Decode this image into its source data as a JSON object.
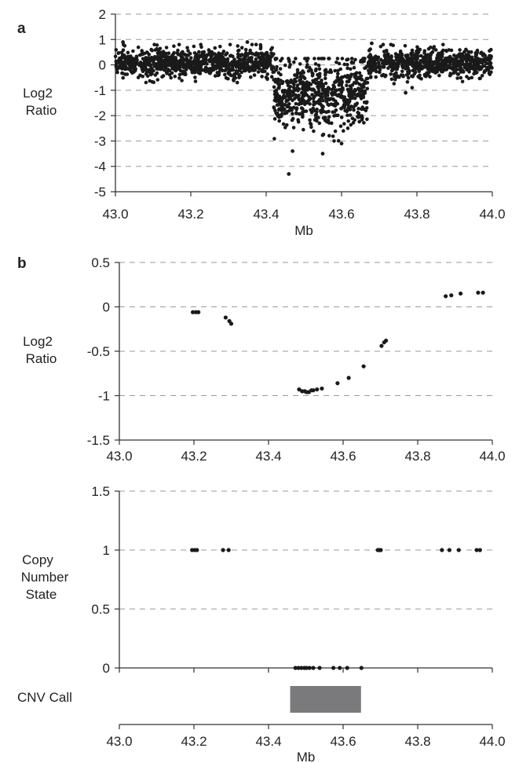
{
  "panel_labels": [
    "a",
    "b"
  ],
  "cnv_label": "CNV Call",
  "colors": {
    "points": "#1a1a1a",
    "grid": "#9a9a9a",
    "axis": "#333333",
    "cnv_bar": "#7a7a7c"
  },
  "chart_data": [
    {
      "id": "a",
      "type": "scatter",
      "xlabel": "Mb",
      "ylabel": "Log2\nRatio",
      "xlim": [
        43.0,
        44.0
      ],
      "ylim": [
        -5,
        2
      ],
      "xticks": [
        "43.0",
        "43.2",
        "43.4",
        "43.6",
        "43.8",
        "44.0"
      ],
      "yticks": [
        "2",
        "1",
        "0",
        "-1",
        "-2",
        "-3",
        "-4",
        "-5"
      ],
      "grid": "horizontal dashed",
      "description_of_points": "about 2000 probes; neutral region near 0 (sd ~0.25) from 43.00-43.42 and 43.67-44.00 Mb; deleted region 43.42-43.67 Mb centered around -1 (range roughly -4.3 to 0.3)",
      "segments": [
        {
          "x_start": 43.0,
          "x_end": 43.42,
          "center": 0.05,
          "spread": 0.28
        },
        {
          "x_start": 43.42,
          "x_end": 43.67,
          "center": -1.1,
          "spread": 0.7
        },
        {
          "x_start": 43.67,
          "x_end": 44.0,
          "center": 0.05,
          "spread": 0.28
        }
      ],
      "outliers": [
        {
          "x": 43.46,
          "y": -4.3
        },
        {
          "x": 43.47,
          "y": -3.4
        },
        {
          "x": 43.55,
          "y": -3.5
        },
        {
          "x": 43.6,
          "y": -3.1
        },
        {
          "x": 43.35,
          "y": 0.9
        },
        {
          "x": 43.02,
          "y": 0.9
        },
        {
          "x": 43.68,
          "y": 0.85
        },
        {
          "x": 43.77,
          "y": -1.1
        }
      ]
    },
    {
      "id": "b1",
      "type": "scatter",
      "xlabel": "",
      "ylabel": "Log2\nRatio",
      "xlim": [
        43.0,
        44.0
      ],
      "ylim": [
        -1.5,
        0.5
      ],
      "xticks": [
        "43.0",
        "43.2",
        "43.4",
        "43.6",
        "43.8",
        "44.0"
      ],
      "yticks": [
        "0.5",
        "0",
        "-0.5",
        "-1",
        "-1.5"
      ],
      "grid": "horizontal dashed",
      "x": [
        43.197,
        43.205,
        43.212,
        43.285,
        43.295,
        43.3,
        43.482,
        43.49,
        43.497,
        43.502,
        43.508,
        43.515,
        43.52,
        43.53,
        43.543,
        43.585,
        43.615,
        43.655,
        43.703,
        43.71,
        43.715,
        43.875,
        43.89,
        43.915,
        43.962,
        43.975
      ],
      "y": [
        -0.06,
        -0.06,
        -0.06,
        -0.12,
        -0.16,
        -0.19,
        -0.93,
        -0.95,
        -0.95,
        -0.96,
        -0.96,
        -0.94,
        -0.94,
        -0.93,
        -0.92,
        -0.86,
        -0.8,
        -0.67,
        -0.44,
        -0.4,
        -0.38,
        0.12,
        0.13,
        0.15,
        0.16,
        0.16
      ]
    },
    {
      "id": "b2",
      "type": "scatter",
      "xlabel": "Mb",
      "ylabel": "Copy\nNumber\nState",
      "xlim": [
        43.0,
        44.0
      ],
      "ylim": [
        0,
        1.5
      ],
      "xticks": [
        "43.0",
        "43.2",
        "43.4",
        "43.6",
        "43.8",
        "44.0"
      ],
      "yticks": [
        "1.5",
        "1",
        "0.5",
        "0"
      ],
      "grid": "horizontal dashed",
      "x": [
        43.195,
        43.202,
        43.208,
        43.278,
        43.293,
        43.693,
        43.697,
        43.701,
        43.865,
        43.885,
        43.91,
        43.958,
        43.967,
        43.472,
        43.48,
        43.488,
        43.496,
        43.502,
        43.51,
        43.52,
        43.537,
        43.574,
        43.591,
        43.611,
        43.649
      ],
      "y": [
        1,
        1,
        1,
        1,
        1,
        1,
        1,
        1,
        1,
        1,
        1,
        1,
        1,
        0,
        0,
        0,
        0,
        0,
        0,
        0,
        0,
        0,
        0,
        0,
        0
      ],
      "cnv_call": {
        "start": 43.458,
        "end": 43.648
      }
    }
  ]
}
